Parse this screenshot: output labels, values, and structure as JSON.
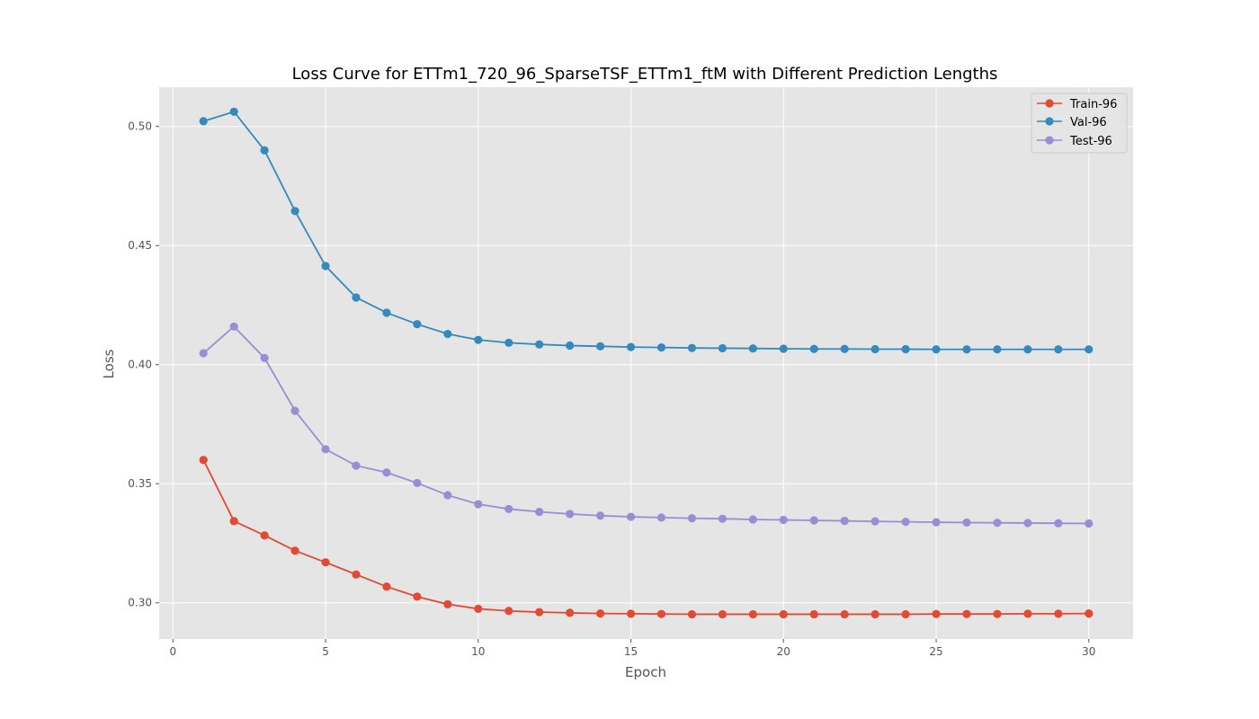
{
  "chart_data": {
    "type": "line",
    "title": "Loss Curve for ETTm1_720_96_SparseTSF_ETTm1_ftM with Different Prediction Lengths",
    "xlabel": "Epoch",
    "ylabel": "Loss",
    "xlim": [
      -0.45,
      31.45
    ],
    "ylim": [
      0.2848,
      0.5165
    ],
    "xticks": [
      0,
      5,
      10,
      15,
      20,
      25,
      30
    ],
    "yticks": [
      0.3,
      0.35,
      0.4,
      0.45,
      0.5
    ],
    "ytick_labels": [
      "0.30",
      "0.35",
      "0.40",
      "0.45",
      "0.50"
    ],
    "grid": true,
    "legend_position": "top-right",
    "x": [
      1,
      2,
      3,
      4,
      5,
      6,
      7,
      8,
      9,
      10,
      11,
      12,
      13,
      14,
      15,
      16,
      17,
      18,
      19,
      20,
      21,
      22,
      23,
      24,
      25,
      26,
      27,
      28,
      29,
      30
    ],
    "series": [
      {
        "name": "Train-96",
        "color": "#e24a33",
        "values": [
          0.36,
          0.3343,
          0.3283,
          0.3219,
          0.317,
          0.3119,
          0.3068,
          0.3026,
          0.2994,
          0.2975,
          0.2966,
          0.2961,
          0.2958,
          0.2955,
          0.2954,
          0.2953,
          0.2952,
          0.2952,
          0.2952,
          0.2952,
          0.2952,
          0.2952,
          0.2952,
          0.2952,
          0.2953,
          0.2953,
          0.2953,
          0.2954,
          0.2954,
          0.2955
        ]
      },
      {
        "name": "Val-96",
        "color": "#348abd",
        "values": [
          0.5022,
          0.5062,
          0.49,
          0.4645,
          0.4414,
          0.4282,
          0.4218,
          0.417,
          0.4129,
          0.4104,
          0.4092,
          0.4085,
          0.408,
          0.4077,
          0.4074,
          0.4072,
          0.407,
          0.4069,
          0.4068,
          0.4067,
          0.4066,
          0.4066,
          0.4065,
          0.4065,
          0.4064,
          0.4064,
          0.4064,
          0.4064,
          0.4064,
          0.4064
        ]
      },
      {
        "name": "Test-96",
        "color": "#988ed5",
        "values": [
          0.4048,
          0.416,
          0.4028,
          0.3806,
          0.3645,
          0.3576,
          0.3547,
          0.3503,
          0.3452,
          0.3414,
          0.3394,
          0.3382,
          0.3373,
          0.3366,
          0.3361,
          0.3358,
          0.3355,
          0.3353,
          0.335,
          0.3348,
          0.3346,
          0.3344,
          0.3342,
          0.334,
          0.3338,
          0.3337,
          0.3336,
          0.3335,
          0.3334,
          0.3333
        ]
      }
    ]
  }
}
